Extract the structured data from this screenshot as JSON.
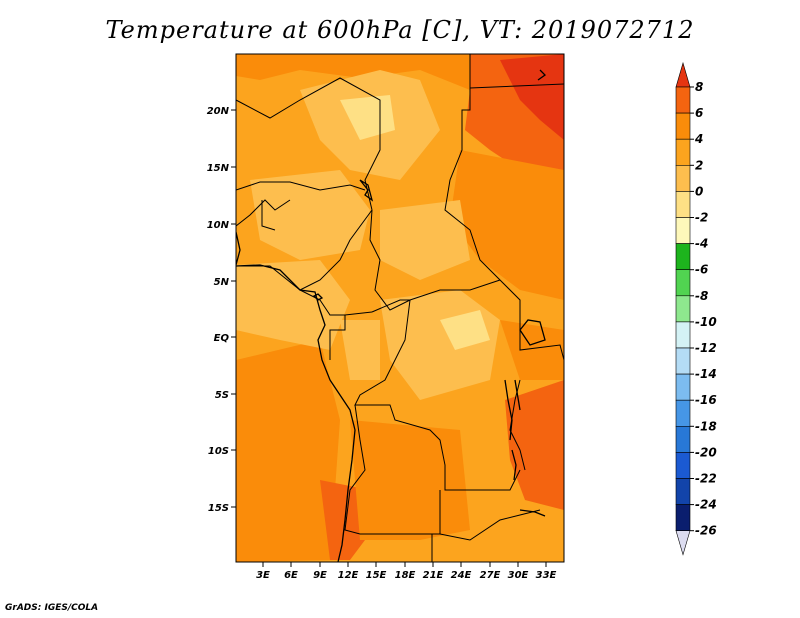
{
  "title": "Temperature at 600hPa [C], VT: 2019072712",
  "credit": "GrADS: IGES/COLA",
  "map": {
    "lat_labels": [
      "20N",
      "15N",
      "10N",
      "5N",
      "EQ",
      "5S",
      "10S",
      "15S"
    ],
    "lon_labels": [
      "3E",
      "6E",
      "9E",
      "12E",
      "15E",
      "18E",
      "21E",
      "24E",
      "27E",
      "30E",
      "33E"
    ]
  },
  "colorbar": {
    "levels": [
      "8",
      "6",
      "4",
      "2",
      "0",
      "-2",
      "-4",
      "-6",
      "-8",
      "-10",
      "-12",
      "-14",
      "-16",
      "-18",
      "-20",
      "-22",
      "-24",
      "-26"
    ],
    "colors": [
      "#e53511",
      "#f46410",
      "#fa8c0a",
      "#fca41e",
      "#fdbe4e",
      "#fee085",
      "#fef8ba",
      "#1db41d",
      "#51d451",
      "#8ee88e",
      "#d4f2f5",
      "#b4dcf5",
      "#7cbcf0",
      "#4696e6",
      "#2878d7",
      "#1b5ad2",
      "#1244aa",
      "#0a1e6e",
      "#dcdcf0"
    ]
  }
}
